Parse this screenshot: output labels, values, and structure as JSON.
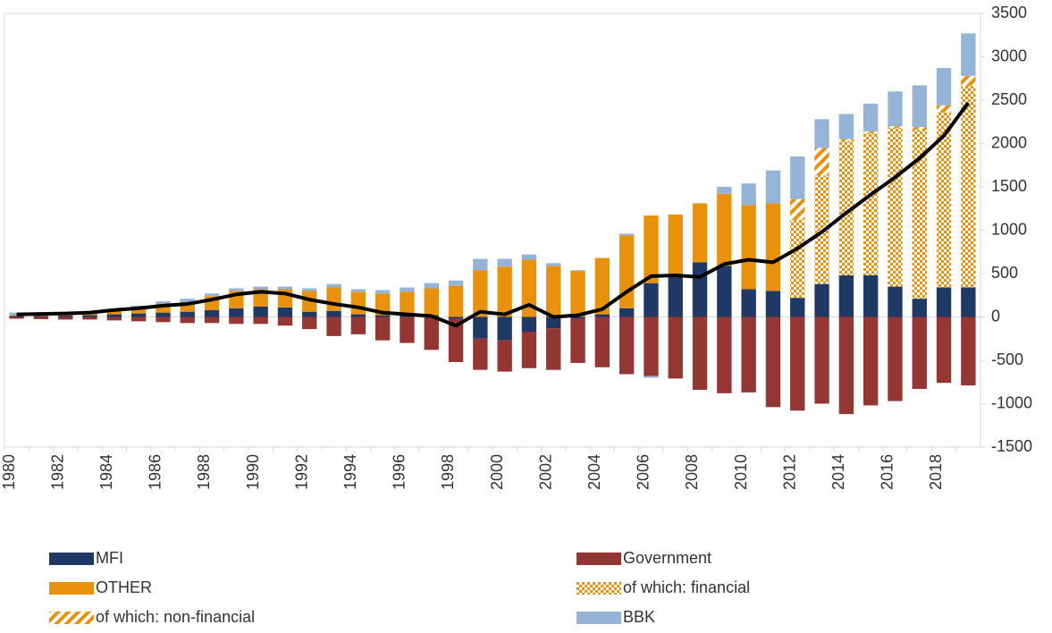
{
  "chart_data": {
    "type": "bar",
    "categories": [
      "1980",
      null,
      "1982",
      null,
      "1984",
      null,
      "1986",
      null,
      "1988",
      null,
      "1990",
      null,
      "1992",
      null,
      "1994",
      null,
      "1996",
      null,
      "1998",
      null,
      "2000",
      null,
      "2002",
      null,
      "2004",
      null,
      "2006",
      null,
      "2008",
      null,
      "2010",
      null,
      "2012",
      null,
      "2014",
      null,
      "2016",
      null,
      "2018",
      null
    ],
    "series": [
      {
        "name": "MFI",
        "color": "#203864",
        "values": [
          10,
          10,
          15,
          20,
          30,
          40,
          50,
          60,
          80,
          100,
          120,
          110,
          60,
          70,
          30,
          20,
          20,
          20,
          -20,
          -250,
          -270,
          -170,
          -130,
          -20,
          30,
          100,
          390,
          470,
          630,
          590,
          320,
          300,
          220,
          380,
          480,
          480,
          350,
          210,
          340,
          340
        ]
      },
      {
        "name": "Government",
        "color": "#943634",
        "values": [
          -20,
          -25,
          -30,
          -30,
          -40,
          -50,
          -60,
          -70,
          -70,
          -80,
          -80,
          -100,
          -140,
          -220,
          -200,
          -270,
          -300,
          -380,
          -500,
          -360,
          -360,
          -420,
          -480,
          -510,
          -580,
          -660,
          -680,
          -710,
          -840,
          -880,
          -870,
          -1040,
          -1080,
          -1000,
          -1120,
          -1020,
          -970,
          -830,
          -760,
          -790
        ]
      },
      {
        "name": "OTHER",
        "color": "#e8910c",
        "values": [
          10,
          10,
          15,
          20,
          40,
          60,
          100,
          110,
          160,
          200,
          200,
          210,
          240,
          270,
          260,
          250,
          270,
          310,
          360,
          540,
          580,
          660,
          590,
          530,
          650,
          840,
          780,
          710,
          680,
          830,
          970,
          1010,
          0,
          0,
          0,
          0,
          0,
          0,
          0,
          0
        ]
      },
      {
        "name": "of which: financial",
        "color": "#e8910c",
        "fill_pattern": "checker",
        "values": [
          0,
          0,
          0,
          0,
          0,
          0,
          0,
          0,
          0,
          0,
          0,
          0,
          0,
          0,
          0,
          0,
          0,
          0,
          0,
          0,
          0,
          0,
          0,
          0,
          0,
          0,
          0,
          0,
          0,
          0,
          0,
          0,
          900,
          1250,
          1550,
          1640,
          1830,
          1950,
          2020,
          2320
        ]
      },
      {
        "name": "of which: non-financial",
        "color": "#e8910c",
        "fill_pattern": "hatch",
        "values": [
          0,
          0,
          0,
          0,
          0,
          0,
          0,
          0,
          0,
          0,
          0,
          0,
          0,
          0,
          0,
          0,
          0,
          0,
          0,
          0,
          0,
          0,
          0,
          0,
          0,
          0,
          0,
          0,
          0,
          0,
          0,
          0,
          240,
          320,
          20,
          20,
          20,
          30,
          80,
          120
        ]
      },
      {
        "name": "BBK",
        "color": "#95b3d7",
        "values": [
          30,
          20,
          20,
          20,
          20,
          30,
          30,
          40,
          30,
          30,
          30,
          30,
          30,
          40,
          30,
          40,
          50,
          60,
          60,
          130,
          90,
          60,
          30,
          10,
          0,
          20,
          -20,
          0,
          0,
          80,
          250,
          380,
          490,
          330,
          290,
          320,
          400,
          480,
          430,
          490
        ]
      },
      {
        "type": "line",
        "color": "#000000",
        "values": [
          30,
          35,
          40,
          50,
          80,
          100,
          130,
          150,
          200,
          260,
          290,
          270,
          200,
          150,
          110,
          50,
          30,
          10,
          -100,
          60,
          30,
          140,
          0,
          20,
          90,
          290,
          470,
          480,
          460,
          610,
          660,
          630,
          790,
          980,
          1200,
          1410,
          1610,
          1830,
          2090,
          2470
        ]
      }
    ],
    "ylim": [
      -1500,
      3500
    ],
    "yticks": [
      -1500,
      -1000,
      -500,
      0,
      500,
      1000,
      1500,
      2000,
      2500,
      3000,
      3500
    ]
  }
}
